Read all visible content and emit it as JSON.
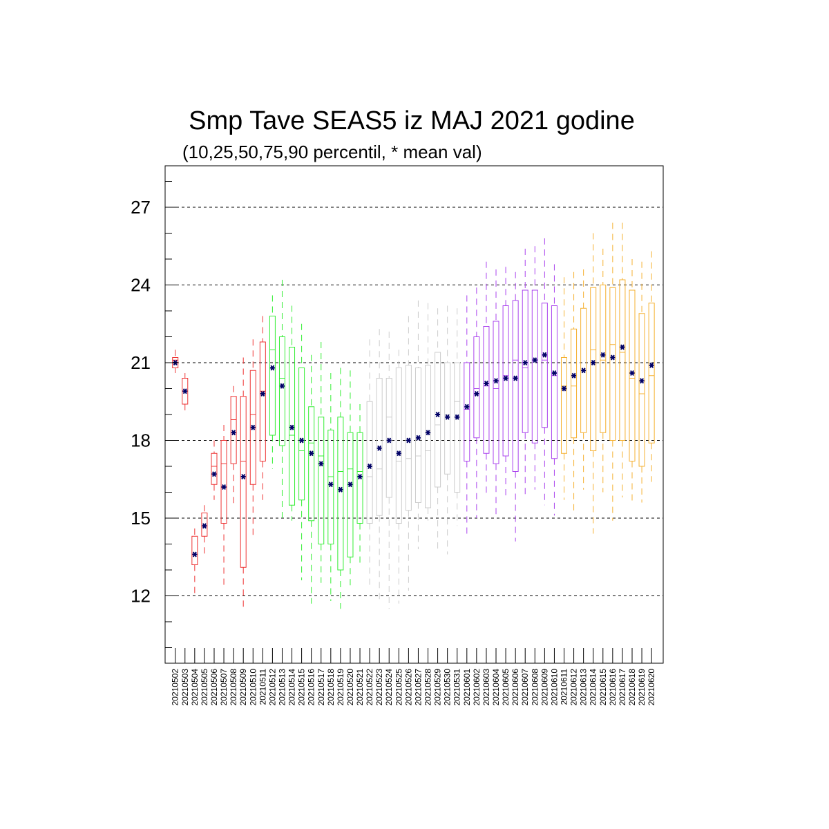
{
  "chart_data": {
    "type": "boxplot",
    "title": "Smp Tave SEAS5 iz MAJ 2021 godine",
    "subtitle": "(10,25,50,75,90 percentil, * mean val)",
    "ylim": [
      9.4,
      28.6
    ],
    "yticks": [
      12,
      15,
      18,
      21,
      24,
      27
    ],
    "ytick_labels": [
      "12",
      "15",
      "18",
      "21",
      "24",
      "27"
    ],
    "grid": "dashed horizontal at major ticks",
    "mean_marker_color": "#000066",
    "categories": [
      "20210502",
      "20210503",
      "20210504",
      "20210505",
      "20210506",
      "20210507",
      "20210508",
      "20210509",
      "20210510",
      "20210511",
      "20210512",
      "20210513",
      "20210514",
      "20210515",
      "20210516",
      "20210517",
      "20210518",
      "20210519",
      "20210520",
      "20210521",
      "20210522",
      "20210523",
      "20210524",
      "20210525",
      "20210526",
      "20210527",
      "20210528",
      "20210529",
      "20210530",
      "20210531",
      "20210601",
      "20210602",
      "20210603",
      "20210604",
      "20210605",
      "20210606",
      "20210607",
      "20210608",
      "20210609",
      "20210610",
      "20210611",
      "20210612",
      "20210613",
      "20210614",
      "20210615",
      "20210616",
      "20210617",
      "20210618",
      "20210619",
      "20210620"
    ],
    "colors": [
      "#ee3333",
      "#ee3333",
      "#ee3333",
      "#ee3333",
      "#ee3333",
      "#ee3333",
      "#ee3333",
      "#ee3333",
      "#ee3333",
      "#ee3333",
      "#33ee33",
      "#33ee33",
      "#33ee33",
      "#33ee33",
      "#33ee33",
      "#33ee33",
      "#33ee33",
      "#33ee33",
      "#33ee33",
      "#33ee33",
      "#cccccc",
      "#cccccc",
      "#cccccc",
      "#cccccc",
      "#cccccc",
      "#cccccc",
      "#cccccc",
      "#cccccc",
      "#cccccc",
      "#cccccc",
      "#aa44ee",
      "#aa44ee",
      "#aa44ee",
      "#aa44ee",
      "#aa44ee",
      "#aa44ee",
      "#aa44ee",
      "#aa44ee",
      "#aa44ee",
      "#aa44ee",
      "#f5b030",
      "#f5b030",
      "#f5b030",
      "#f5b030",
      "#f5b030",
      "#f5b030",
      "#f5b030",
      "#f5b030",
      "#f5b030",
      "#f5b030"
    ],
    "p10": [
      20.6,
      19.1,
      12.0,
      13.6,
      15.7,
      12.3,
      15.4,
      11.4,
      14.2,
      15.7,
      16.9,
      15.0,
      14.9,
      12.6,
      11.7,
      12.5,
      11.8,
      11.5,
      12.3,
      13.1,
      12.3,
      11.7,
      11.5,
      11.7,
      12.2,
      13.8,
      14.9,
      13.7,
      13.6,
      14.7,
      14.4,
      15.0,
      15.8,
      15.1,
      15.7,
      14.1,
      15.9,
      16.1,
      15.5,
      15.1,
      15.7,
      15.2,
      16.1,
      14.4,
      16.0,
      14.9,
      15.8,
      15.5,
      15.6,
      16.4
    ],
    "p25": [
      20.8,
      19.4,
      13.2,
      14.3,
      16.3,
      14.8,
      17.1,
      13.1,
      16.3,
      17.2,
      18.2,
      17.8,
      15.5,
      15.7,
      14.9,
      14.0,
      14.0,
      13.0,
      13.5,
      14.8,
      14.8,
      15.1,
      15.8,
      14.8,
      15.3,
      15.6,
      15.4,
      16.2,
      16.7,
      16.0,
      17.2,
      18.1,
      17.5,
      17.1,
      17.4,
      16.8,
      18.3,
      17.9,
      18.5,
      17.3,
      17.5,
      18.1,
      18.3,
      17.6,
      18.3,
      18.0,
      18.0,
      17.2,
      17.0,
      17.9
    ],
    "p50": [
      21.1,
      19.9,
      13.6,
      14.7,
      17.0,
      17.1,
      18.8,
      17.2,
      19.0,
      19.9,
      21.5,
      20.4,
      18.2,
      17.6,
      17.9,
      17.4,
      16.6,
      16.8,
      16.9,
      16.8,
      16.6,
      16.9,
      18.9,
      17.2,
      17.3,
      17.4,
      17.6,
      18.6,
      19.0,
      19.5,
      19.2,
      20.0,
      20.1,
      20.0,
      20.5,
      21.1,
      20.8,
      21.1,
      21.1,
      20.5,
      20.1,
      20.1,
      20.7,
      21.5,
      21.1,
      21.7,
      21.4,
      20.4,
      19.8,
      20.5
    ],
    "p75": [
      21.2,
      20.4,
      14.3,
      15.2,
      17.5,
      18.0,
      19.7,
      19.7,
      20.7,
      21.8,
      22.8,
      22.0,
      21.6,
      20.8,
      19.3,
      18.9,
      18.4,
      18.9,
      18.3,
      18.3,
      19.5,
      20.4,
      20.4,
      20.8,
      20.9,
      20.8,
      20.9,
      21.4,
      21.0,
      21.0,
      21.0,
      22.0,
      22.4,
      22.6,
      23.2,
      23.4,
      23.8,
      23.8,
      23.3,
      23.2,
      21.2,
      22.3,
      23.1,
      23.9,
      24.0,
      23.9,
      24.2,
      23.8,
      22.9,
      23.3
    ],
    "p90": [
      21.5,
      20.6,
      14.6,
      15.5,
      18.0,
      18.6,
      20.1,
      21.2,
      21.9,
      22.8,
      23.6,
      24.2,
      23.2,
      22.5,
      21.3,
      21.8,
      20.6,
      20.8,
      20.7,
      19.4,
      21.9,
      22.3,
      22.2,
      21.5,
      22.8,
      23.4,
      23.3,
      23.1,
      23.2,
      23.1,
      23.6,
      23.9,
      24.9,
      24.6,
      24.7,
      24.5,
      25.4,
      25.5,
      25.8,
      24.8,
      24.3,
      24.5,
      24.6,
      26.0,
      25.4,
      26.4,
      26.4,
      25.0,
      24.9,
      25.3
    ],
    "mean": [
      21.0,
      19.9,
      13.6,
      14.7,
      16.7,
      16.2,
      18.3,
      16.6,
      18.5,
      19.8,
      20.8,
      20.1,
      18.5,
      18.0,
      17.5,
      17.1,
      16.3,
      16.1,
      16.3,
      16.6,
      17.0,
      17.7,
      18.0,
      17.5,
      18.0,
      18.1,
      18.3,
      19.0,
      18.9,
      18.9,
      19.3,
      19.8,
      20.2,
      20.3,
      20.4,
      20.4,
      21.0,
      21.1,
      21.3,
      20.6,
      20.0,
      20.5,
      20.7,
      21.0,
      21.3,
      21.2,
      21.6,
      20.6,
      20.3,
      20.9
    ]
  }
}
